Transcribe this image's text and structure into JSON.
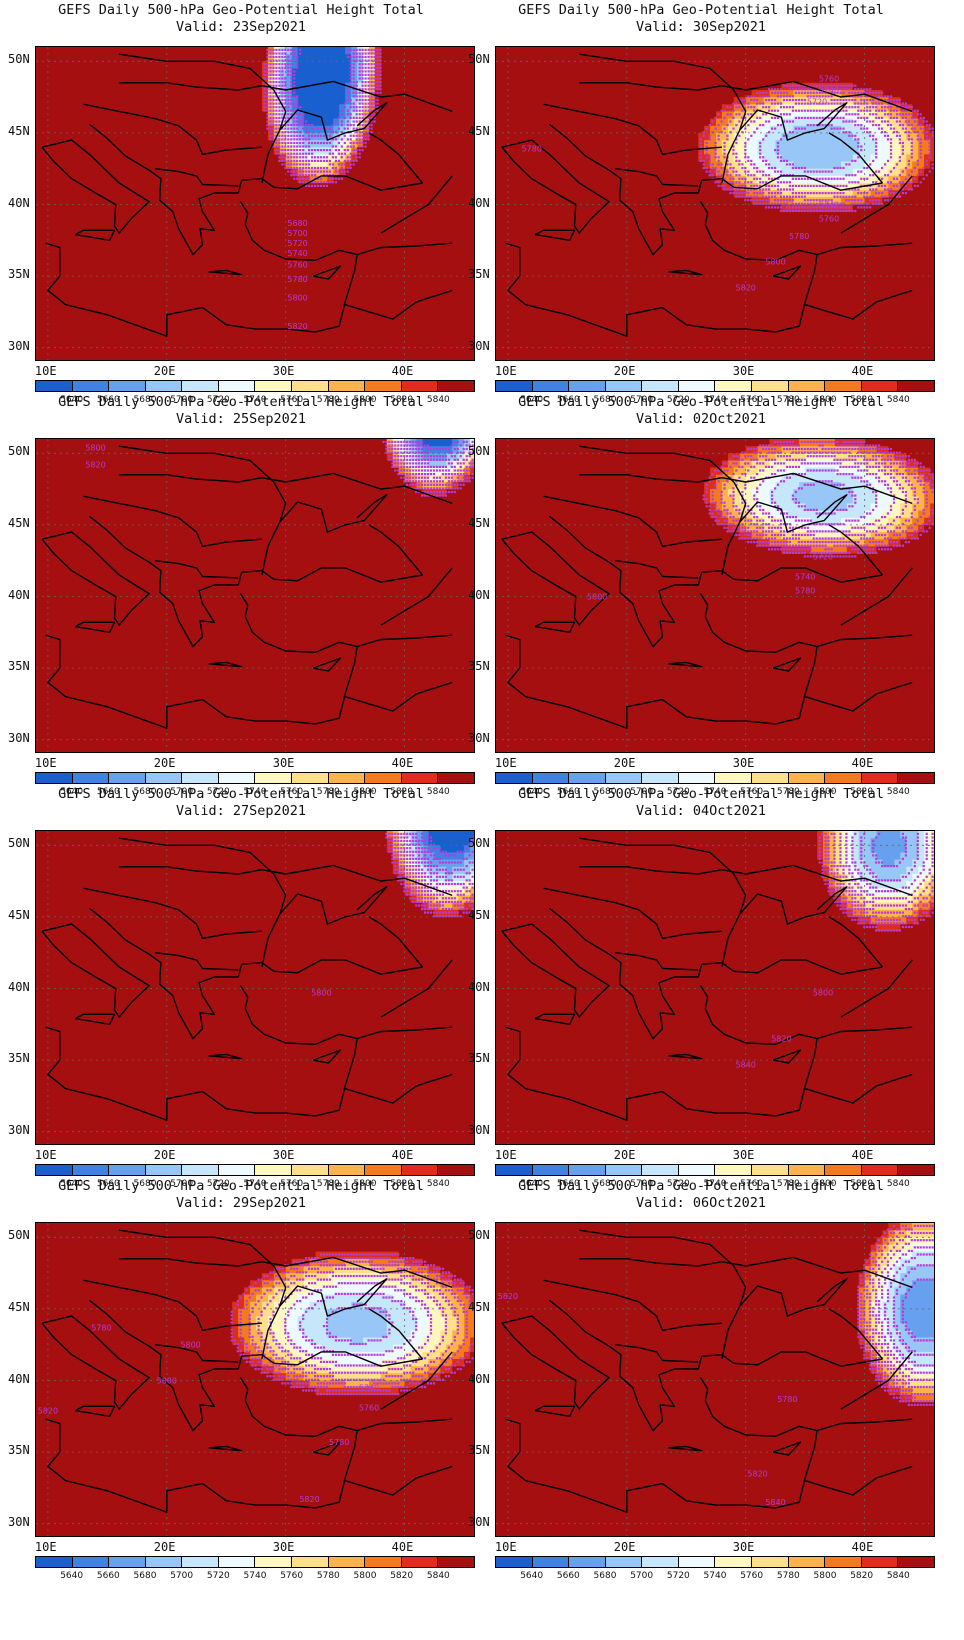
{
  "colorbar": {
    "levels": [
      "5640",
      "5660",
      "5680",
      "5700",
      "5720",
      "5740",
      "5760",
      "5780",
      "5800",
      "5820",
      "5840"
    ],
    "colors": [
      "#1a5fd0",
      "#3f82e6",
      "#67a0ee",
      "#98c6f6",
      "#c6e6fb",
      "#edfaff",
      "#fff7c2",
      "#ffdf88",
      "#fdb349",
      "#f57a1e",
      "#dc2e1a",
      "#a50f0f"
    ]
  },
  "axes": {
    "lat_labels": [
      "50N",
      "45N",
      "40N",
      "35N",
      "30N"
    ],
    "lon_labels": [
      "10E",
      "20E",
      "30E",
      "40E"
    ],
    "lon_range": [
      9,
      46
    ],
    "lat_range": [
      29,
      51
    ]
  },
  "contour_color": "#b43cd8",
  "panels": [
    {
      "title": "GEFS Daily 500-hPa Geo-Potential Height Total",
      "valid": "Valid: 23Sep2021",
      "cx": 33,
      "cy": 49,
      "base": 5580,
      "gx": 11,
      "gy": 4.5,
      "tilt": -0.6,
      "bump_x": 0,
      "bump_y": 0,
      "bump_a": 0,
      "labels": [
        {
          "v": "5680",
          "x": 31,
          "y": 38.5
        },
        {
          "v": "5700",
          "x": 31,
          "y": 37.8
        },
        {
          "v": "5720",
          "x": 31,
          "y": 37.1
        },
        {
          "v": "5740",
          "x": 31,
          "y": 36.4
        },
        {
          "v": "5760",
          "x": 31,
          "y": 35.6
        },
        {
          "v": "5780",
          "x": 31,
          "y": 34.6
        },
        {
          "v": "5800",
          "x": 31,
          "y": 33.3
        },
        {
          "v": "5820",
          "x": 31,
          "y": 31.3
        }
      ]
    },
    {
      "title": "GEFS Daily 500-hPa Geo-Potential Height Total",
      "valid": "Valid: 30Sep2021",
      "cx": 36,
      "cy": 44,
      "base": 5680,
      "gx": 1.6,
      "gy": 8,
      "tilt": 0,
      "bump_x": 0,
      "bump_y": 0,
      "bump_a": 0,
      "labels": [
        {
          "v": "5780",
          "x": 12,
          "y": 43.7
        },
        {
          "v": "5760",
          "x": 37,
          "y": 48.6
        },
        {
          "v": "5740",
          "x": 37,
          "y": 47.8
        },
        {
          "v": "5720",
          "x": 36,
          "y": 47
        },
        {
          "v": "5740",
          "x": 37,
          "y": 39.8
        },
        {
          "v": "5760",
          "x": 37,
          "y": 38.8
        },
        {
          "v": "5780",
          "x": 34.5,
          "y": 37.6
        },
        {
          "v": "5800",
          "x": 32.5,
          "y": 35.8
        },
        {
          "v": "5820",
          "x": 30,
          "y": 34
        }
      ]
    },
    {
      "title": "GEFS Daily 500-hPa Geo-Potential Height Total",
      "valid": "Valid: 25Sep2021",
      "cx": 43,
      "cy": 54,
      "base": 5560,
      "gx": 11,
      "gy": 6,
      "tilt": -0.9,
      "bump_x": 0,
      "bump_y": 0,
      "bump_a": 0,
      "labels": [
        {
          "v": "5800",
          "x": 14,
          "y": 50.2
        },
        {
          "v": "5820",
          "x": 14,
          "y": 49
        }
      ]
    },
    {
      "title": "GEFS Daily 500-hPa Geo-Potential Height Total",
      "valid": "Valid: 02Oct2021",
      "cx": 36.5,
      "cy": 47,
      "base": 5690,
      "gx": 1.5,
      "gy": 9,
      "tilt": 0.2,
      "bump_x": 28,
      "bump_y": 35,
      "bump_a": -25,
      "labels": [
        {
          "v": "5720",
          "x": 36.5,
          "y": 42.6
        },
        {
          "v": "5740",
          "x": 35,
          "y": 41.2
        },
        {
          "v": "5780",
          "x": 35,
          "y": 40.2
        },
        {
          "v": "5800",
          "x": 17.5,
          "y": 39.8
        }
      ]
    },
    {
      "title": "GEFS Daily 500-hPa Geo-Potential Height Total",
      "valid": "Valid: 27Sep2021",
      "cx": 44,
      "cy": 53,
      "base": 5590,
      "gx": 8,
      "gy": 4,
      "tilt": -0.5,
      "bump_x": 26,
      "bump_y": 37,
      "bump_a": -35,
      "labels": [
        {
          "v": "5800",
          "x": 33,
          "y": 39.5
        }
      ]
    },
    {
      "title": "GEFS Daily 500-hPa Geo-Potential Height Total",
      "valid": "Valid: 04Oct2021",
      "cx": 42,
      "cy": 50,
      "base": 5670,
      "gx": 5,
      "gy": 5,
      "tilt": -0.1,
      "bump_x": 0,
      "bump_y": 0,
      "bump_a": 0,
      "labels": [
        {
          "v": "5800",
          "x": 36.5,
          "y": 39.5
        },
        {
          "v": "5820",
          "x": 33,
          "y": 36.3
        },
        {
          "v": "5840",
          "x": 30,
          "y": 34.5
        }
      ]
    },
    {
      "title": "GEFS Daily 500-hPa Geo-Potential Height Total",
      "valid": "Valid: 29Sep2021",
      "cx": 36,
      "cy": 44,
      "base": 5690,
      "gx": 1.3,
      "gy": 6,
      "tilt": 0,
      "bump_x": 0,
      "bump_y": 0,
      "bump_a": 0,
      "labels": [
        {
          "v": "5780",
          "x": 14.5,
          "y": 43.5
        },
        {
          "v": "5800",
          "x": 22,
          "y": 42.3
        },
        {
          "v": "5800",
          "x": 20,
          "y": 39.8
        },
        {
          "v": "5820",
          "x": 10,
          "y": 37.7
        },
        {
          "v": "5740",
          "x": 37,
          "y": 39.3
        },
        {
          "v": "5760",
          "x": 37,
          "y": 37.9
        },
        {
          "v": "5780",
          "x": 34.5,
          "y": 35.5
        },
        {
          "v": "5820",
          "x": 32,
          "y": 31.5
        }
      ]
    },
    {
      "title": "GEFS Daily 500-hPa Geo-Potential Height Total",
      "valid": "Valid: 06Oct2021",
      "cx": 45,
      "cy": 45,
      "base": 5660,
      "gx": 5.5,
      "gy": 4,
      "tilt": 0,
      "bump_x": 0,
      "bump_y": 0,
      "bump_a": 0,
      "labels": [
        {
          "v": "5820",
          "x": 10,
          "y": 45.7
        },
        {
          "v": "5780",
          "x": 33.5,
          "y": 38.5
        },
        {
          "v": "5820",
          "x": 31,
          "y": 33.3
        },
        {
          "v": "5840",
          "x": 32.5,
          "y": 31.3
        }
      ]
    }
  ]
}
